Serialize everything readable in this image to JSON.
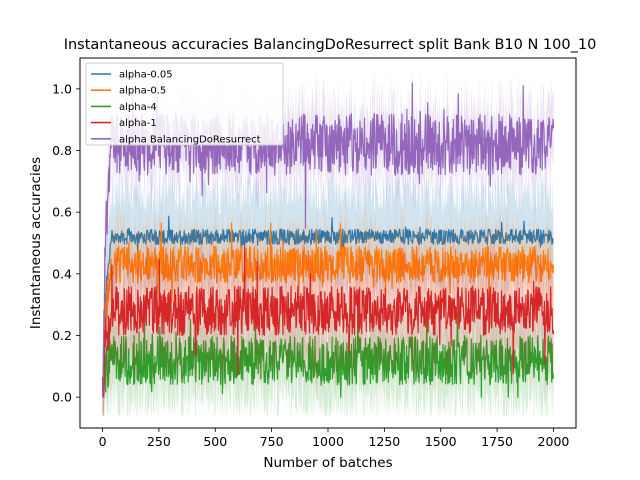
{
  "chart_data": {
    "type": "line",
    "title": "Instantaneous accuracies BalancingDoResurrect split Bank B10 N 100_10",
    "xlabel": "Number of batches",
    "ylabel": "Instantaneous accuracies",
    "xlim": [
      -100,
      2100
    ],
    "ylim": [
      -0.1,
      1.1
    ],
    "xticks": [
      0,
      250,
      500,
      750,
      1000,
      1250,
      1500,
      1750,
      2000
    ],
    "yticks": [
      0.0,
      0.2,
      0.4,
      0.6,
      0.8,
      1.0
    ],
    "xtick_labels": [
      "0",
      "250",
      "500",
      "750",
      "1000",
      "1250",
      "1500",
      "1750",
      "2000"
    ],
    "ytick_labels": [
      "0.0",
      "0.2",
      "0.4",
      "0.6",
      "0.8",
      "1.0"
    ],
    "legend_position": "top-left",
    "grid": false,
    "series": [
      {
        "name": "alpha-0.05",
        "color": "#1f77b4",
        "mean": 0.52,
        "noise": 0.025,
        "band": 0.13,
        "start": 0.0
      },
      {
        "name": "alpha-0.5",
        "color": "#ff7f0e",
        "mean": 0.43,
        "noise": 0.06,
        "band": 0.1,
        "start": 0.0
      },
      {
        "name": "alpha-4",
        "color": "#2ca02c",
        "mean": 0.12,
        "noise": 0.08,
        "band": 0.12,
        "start": 0.0
      },
      {
        "name": "alpha-1",
        "color": "#d62728",
        "mean": 0.28,
        "noise": 0.08,
        "band": 0.14,
        "start": 0.0
      },
      {
        "name": "alpha BalancingDoResurrect",
        "color": "#9467bd",
        "mean": 0.82,
        "noise": 0.1,
        "band": 0.1,
        "start": 0.0
      }
    ],
    "x_max": 2000
  }
}
